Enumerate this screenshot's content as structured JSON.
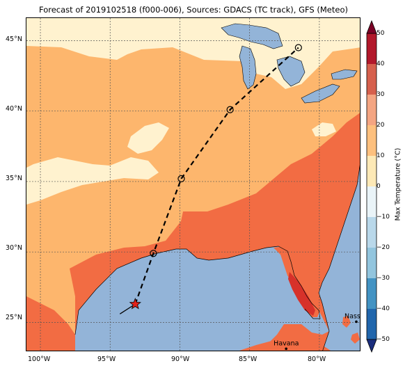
{
  "title": "Forecast of 2019102518 (f000-006), Sources: GDACS (TC track), GFS (Meteo)",
  "x_ticks": [
    "100°W",
    "95°W",
    "90°W",
    "85°W",
    "80°W"
  ],
  "y_ticks": [
    "45°N",
    "40°N",
    "35°N",
    "30°N",
    "25°N"
  ],
  "colorbar": {
    "title": "Max Temperature (°C)",
    "ticks": [
      "50",
      "40",
      "30",
      "20",
      "10",
      "0",
      "−10",
      "−20",
      "−30",
      "−40",
      "−50"
    ],
    "colors": [
      "#7a0025",
      "#b2182b",
      "#d6604d",
      "#f4a582",
      "#fdc07e",
      "#fde9b6",
      "#eaf4f8",
      "#b9d8ea",
      "#92c5de",
      "#4393c3",
      "#2166ac",
      "#1b2e7e"
    ]
  },
  "places": [
    {
      "name": "Havana",
      "lon": -82.38,
      "lat": 23.13
    },
    {
      "name": "Nassau",
      "lon": -77.35,
      "lat": 25.05
    }
  ],
  "track": [
    {
      "lon": -94.3,
      "lat": 25.6
    },
    {
      "lon": -93.2,
      "lat": 26.3
    },
    {
      "lon": -91.9,
      "lat": 29.9
    },
    {
      "lon": -89.9,
      "lat": 35.2
    },
    {
      "lon": -86.4,
      "lat": 40.1
    },
    {
      "lon": -81.5,
      "lat": 44.5
    }
  ],
  "map_colors": {
    "water": "#93b4d8",
    "warm_land": "#fdb66d",
    "cool_land": "#fff2cf",
    "hot_land": "#f26c43",
    "hottest_land": "#d7312a"
  }
}
